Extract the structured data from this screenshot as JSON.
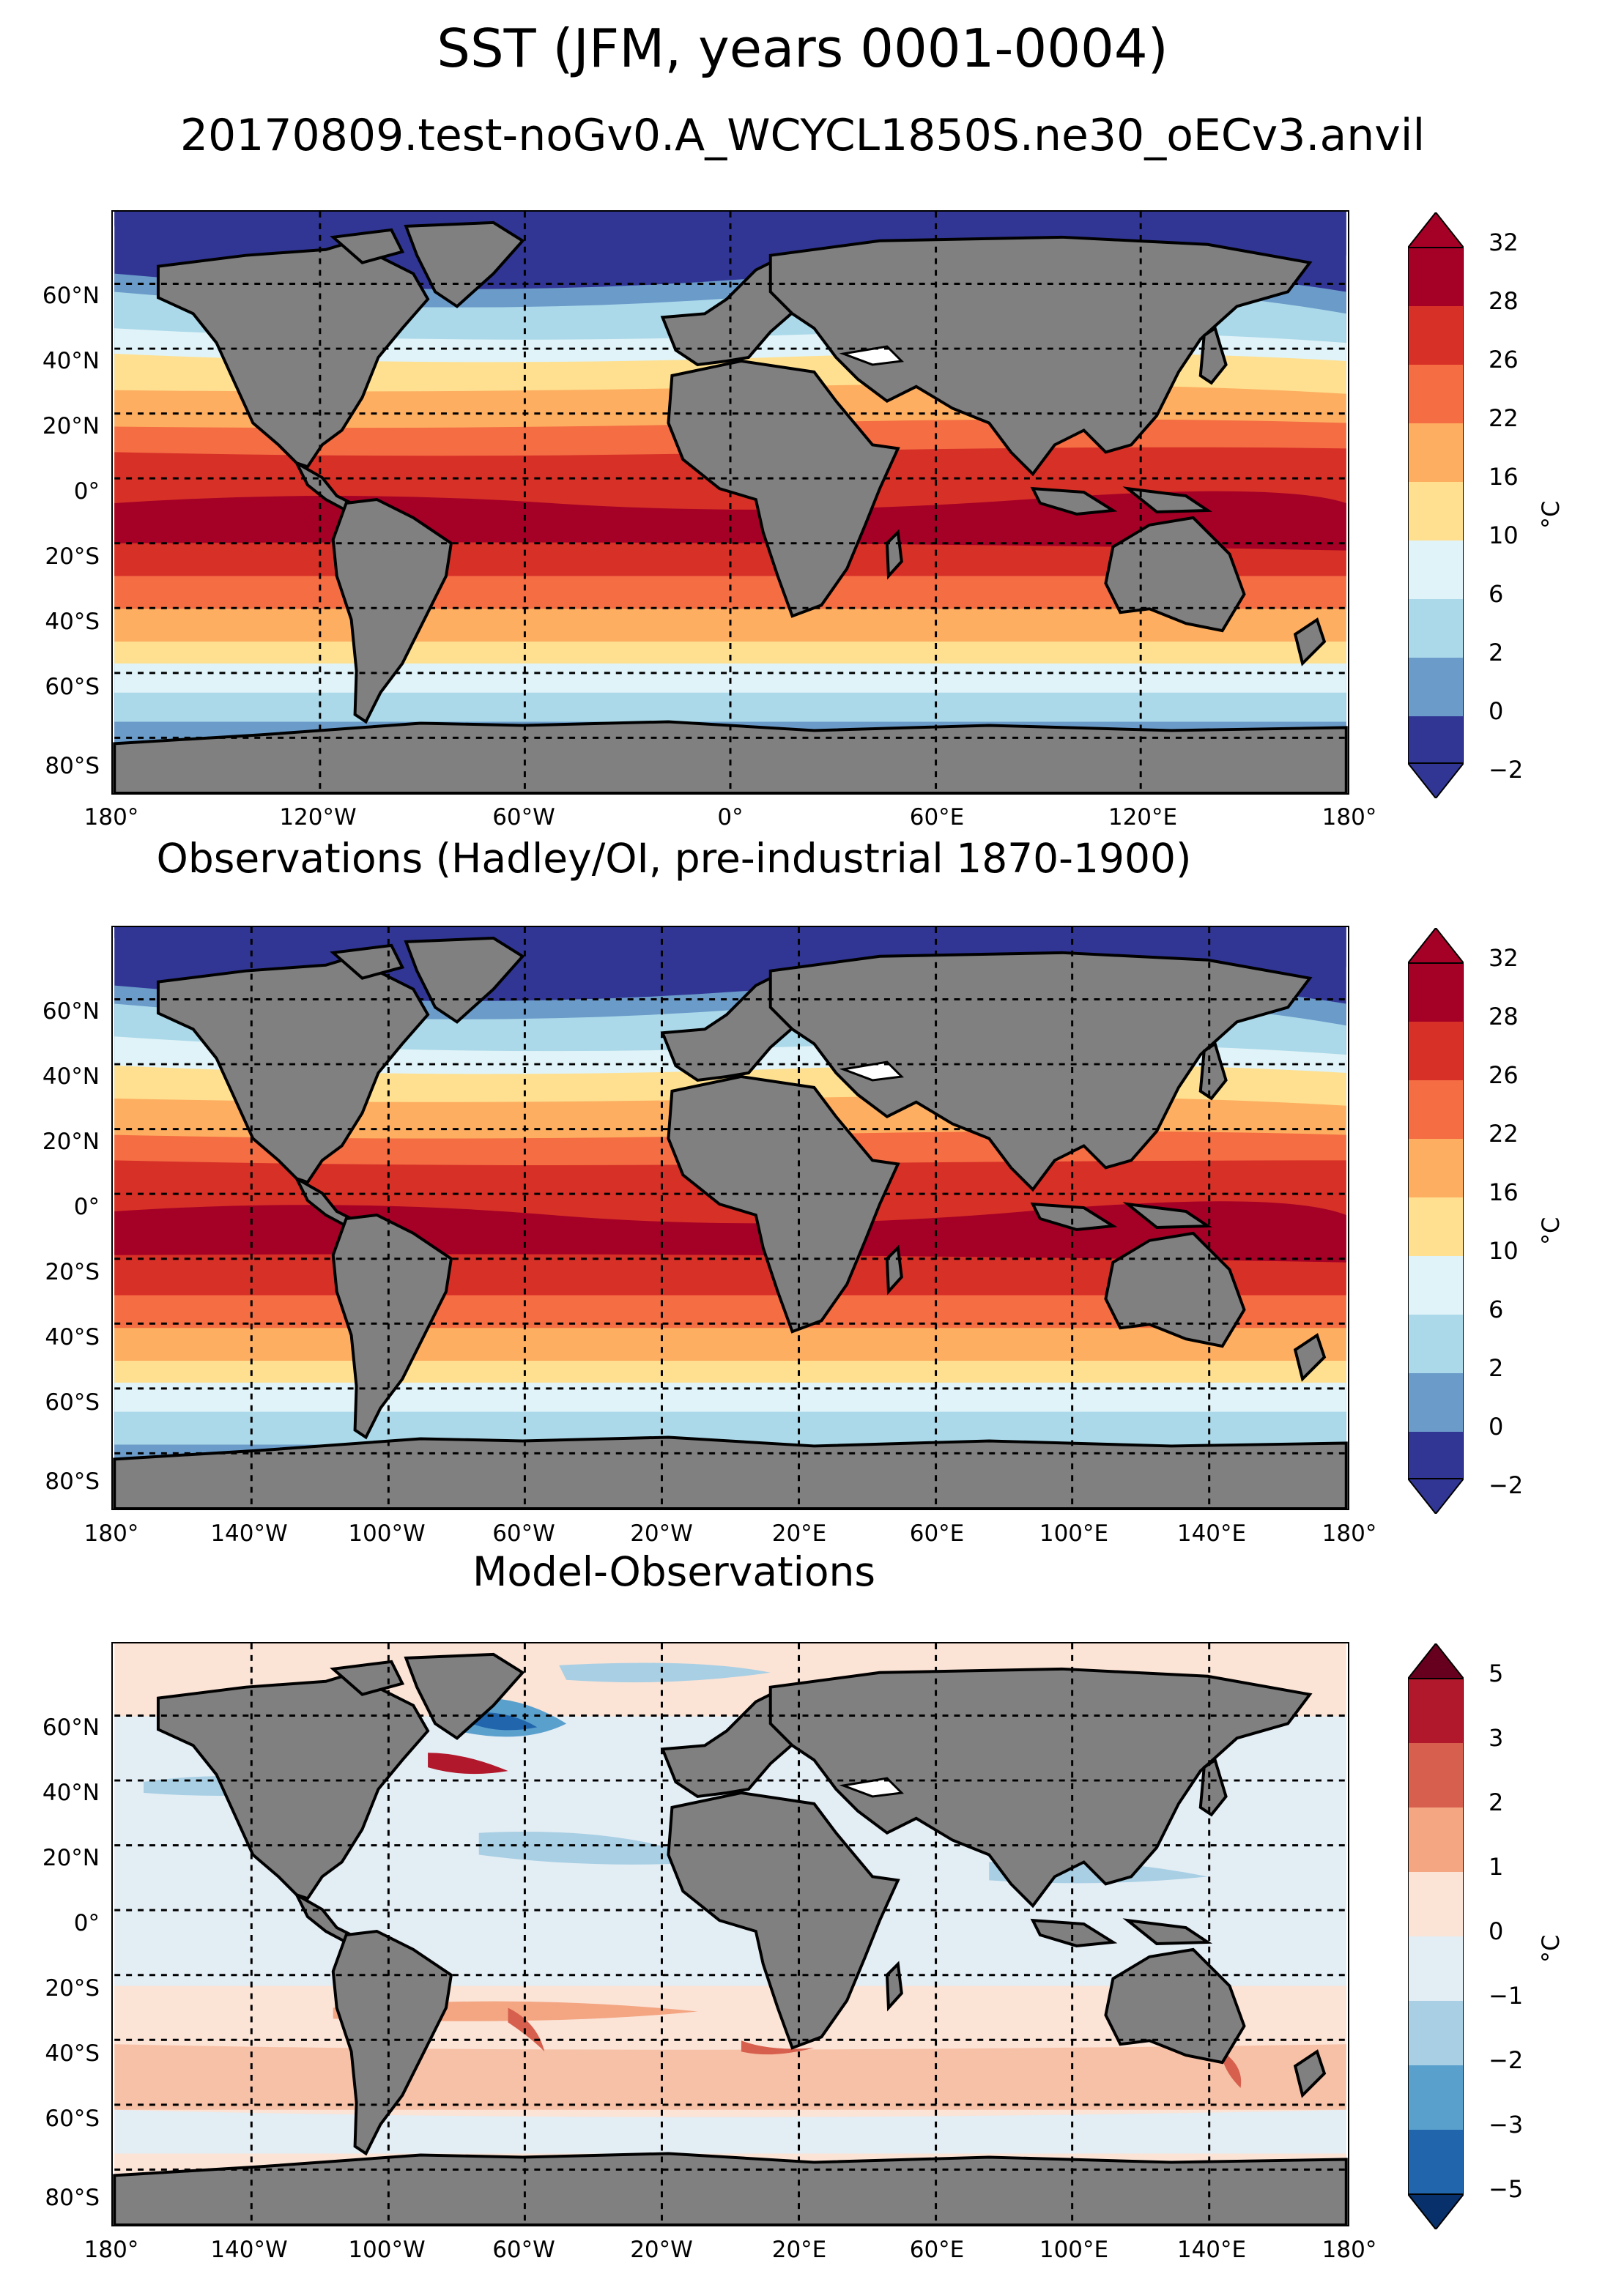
{
  "header": {
    "title": "SST (JFM, years 0001-0004)",
    "subtitle": "20170809.test-noGv0.A_WCYCL1850S.ne30_oECv3.anvil"
  },
  "colors": {
    "land": "#808080",
    "sst_scale": [
      "#313695",
      "#4575b4",
      "#abd9e9",
      "#e0f3f8",
      "#fee090",
      "#fdae61",
      "#f46d43",
      "#d73027",
      "#a50026"
    ],
    "diff_scale": [
      "#08306b",
      "#2166ac",
      "#4393c3",
      "#92c5de",
      "#d1e5f0",
      "#f7f7f7",
      "#fddbc7",
      "#f4a582",
      "#d6604d",
      "#b2182b",
      "#67001f"
    ]
  },
  "panels": [
    {
      "id": "model",
      "title": "",
      "lat_labels": [
        "60°N",
        "40°N",
        "20°N",
        "0°",
        "20°S",
        "40°S",
        "60°S",
        "80°S"
      ],
      "lon_labels": [
        "180°",
        "120°W",
        "60°W",
        "0°",
        "60°E",
        "120°E",
        "180°"
      ],
      "colorbar": {
        "ticks": [
          "32",
          "28",
          "26",
          "22",
          "16",
          "10",
          "6",
          "2",
          "0",
          "−2"
        ],
        "unit": "°C",
        "colors": [
          "#a50026",
          "#d73027",
          "#f46d43",
          "#fdae61",
          "#fee090",
          "#e0f3f8",
          "#abd9e9",
          "#6a9bc9",
          "#313695"
        ]
      }
    },
    {
      "id": "obs",
      "title": "Observations (Hadley/OI, pre-industrial 1870-1900)",
      "lat_labels": [
        "60°N",
        "40°N",
        "20°N",
        "0°",
        "20°S",
        "40°S",
        "60°S",
        "80°S"
      ],
      "lon_labels": [
        "180°",
        "140°W",
        "100°W",
        "60°W",
        "20°W",
        "20°E",
        "60°E",
        "100°E",
        "140°E",
        "180°"
      ],
      "colorbar": {
        "ticks": [
          "32",
          "28",
          "26",
          "22",
          "16",
          "10",
          "6",
          "2",
          "0",
          "−2"
        ],
        "unit": "°C",
        "colors": [
          "#a50026",
          "#d73027",
          "#f46d43",
          "#fdae61",
          "#fee090",
          "#e0f3f8",
          "#abd9e9",
          "#6a9bc9",
          "#313695"
        ]
      }
    },
    {
      "id": "diff",
      "title": "Model-Observations",
      "lat_labels": [
        "60°N",
        "40°N",
        "20°N",
        "0°",
        "20°S",
        "40°S",
        "60°S",
        "80°S"
      ],
      "lon_labels": [
        "180°",
        "140°W",
        "100°W",
        "60°W",
        "20°W",
        "20°E",
        "60°E",
        "100°E",
        "140°E",
        "180°"
      ],
      "colorbar": {
        "ticks": [
          "5",
          "3",
          "2",
          "1",
          "0",
          "−1",
          "−2",
          "−3",
          "−5"
        ],
        "unit": "°C",
        "colors": [
          "#b2182b",
          "#d6604d",
          "#f4a582",
          "#fbe3d6",
          "#e3edf4",
          "#a8cfe4",
          "#5aa0cd",
          "#2166ac"
        ]
      }
    }
  ]
}
